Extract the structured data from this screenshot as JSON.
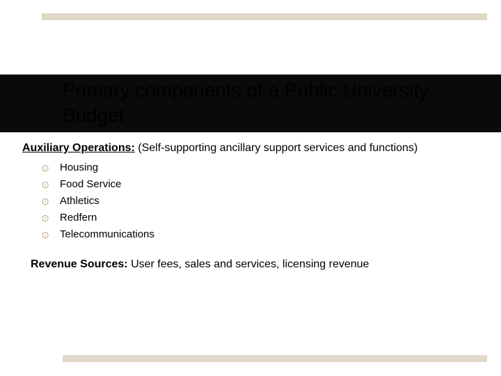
{
  "colors": {
    "accent_bar": "#e0d8c8",
    "title_band": "#0a0a0a",
    "bullet_icon": "#bda77c",
    "text": "#000000",
    "background": "#ffffff"
  },
  "title": "Primary components of a Public University Budget",
  "section": {
    "label": "Auxiliary Operations:",
    "description": " (Self-supporting ancillary support services and functions)"
  },
  "bullets": [
    "Housing",
    "Food Service",
    "Athletics",
    "Redfern",
    "Telecommunications"
  ],
  "revenue": {
    "label": "Revenue Sources: ",
    "text": "User fees, sales and services, licensing revenue"
  },
  "layout": {
    "title_fontsize": 28,
    "body_fontsize": 16,
    "bullet_fontsize": 15,
    "bullet_glyph": "⊙"
  }
}
